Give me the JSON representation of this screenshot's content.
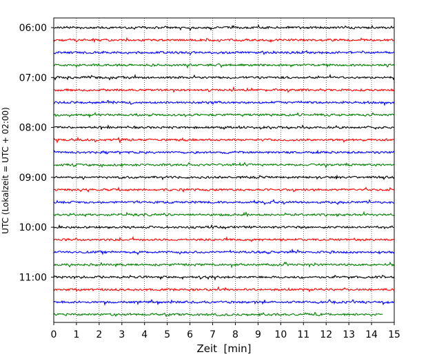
{
  "chart_data": {
    "type": "line",
    "title": "",
    "xlabel": "Zeit  [min]",
    "ylabel": "UTC (Lokalzeit = UTC + 02:00)",
    "xlim": [
      0,
      15
    ],
    "x_ticks": [
      0,
      1,
      2,
      3,
      4,
      5,
      6,
      7,
      8,
      9,
      10,
      11,
      12,
      13,
      14,
      15
    ],
    "x_grid": "dotted vertical at each minute",
    "y_ticks": [
      "06:00",
      "07:00",
      "08:00",
      "09:00",
      "10:00",
      "11:00"
    ],
    "trace_interval_minutes": 15,
    "trace_start_times": [
      "06:00",
      "06:15",
      "06:30",
      "06:45",
      "07:00",
      "07:15",
      "07:30",
      "07:45",
      "08:00",
      "08:15",
      "08:30",
      "08:45",
      "09:00",
      "09:15",
      "09:30",
      "09:45",
      "10:00",
      "10:15",
      "10:30",
      "10:45",
      "11:00",
      "11:15",
      "11:30",
      "11:45"
    ],
    "color_cycle": [
      "#000000",
      "#ff0000",
      "#0000ff",
      "#008000"
    ],
    "last_trace_end_minute": 14.5
  }
}
